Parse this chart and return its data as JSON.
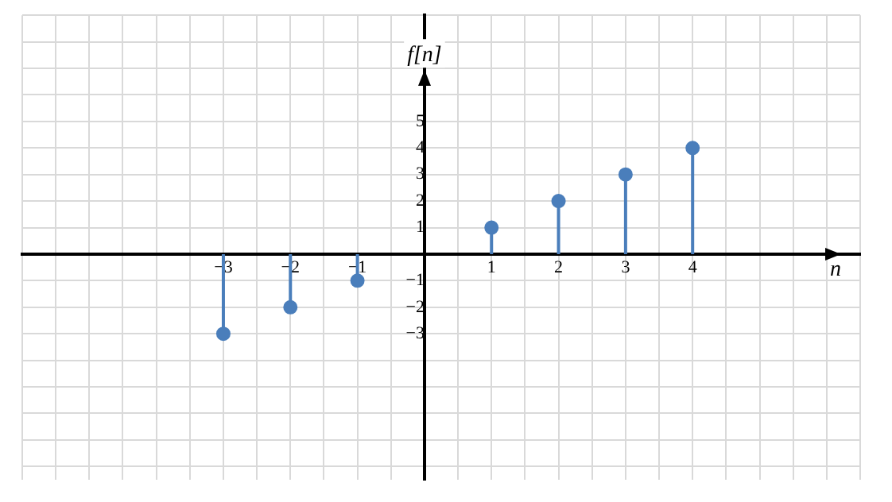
{
  "chart_data": {
    "type": "lollipop",
    "xlabel": "n",
    "ylabel": "f[n]",
    "x": [
      -3,
      -2,
      -1,
      1,
      2,
      3,
      4
    ],
    "values": [
      -3,
      -2,
      -1,
      1,
      2,
      3,
      4
    ],
    "color": "#4a7ebb",
    "marker": "circle",
    "grid": true,
    "xlim": [
      -6,
      6.5
    ],
    "ylim": [
      -8.5,
      9
    ],
    "xticks": [
      {
        "value": -6,
        "label": null
      },
      {
        "value": -5.5,
        "label": null
      },
      {
        "value": -5,
        "label": null
      },
      {
        "value": -4.5,
        "label": null
      },
      {
        "value": -4,
        "label": null
      },
      {
        "value": -3.5,
        "label": null
      },
      -3,
      {
        "value": -2.5,
        "label": null
      },
      -2,
      {
        "value": -1.5,
        "label": null
      },
      -1,
      {
        "value": -0.5,
        "label": null
      },
      {
        "value": 0,
        "label": null
      },
      {
        "value": 0.5,
        "label": null
      },
      1,
      {
        "value": 1.5,
        "label": null
      },
      2,
      {
        "value": 2.5,
        "label": null
      },
      3,
      {
        "value": 3.5,
        "label": null
      },
      4,
      {
        "value": 4.5,
        "label": null
      },
      {
        "value": 5,
        "label": null
      },
      {
        "value": 5.5,
        "label": null
      },
      {
        "value": 6,
        "label": null
      },
      {
        "value": 6.5,
        "label": null
      }
    ],
    "yticks": [
      {
        "value": -8,
        "label": null
      },
      {
        "value": -7,
        "label": null
      },
      {
        "value": -6,
        "label": null
      },
      {
        "value": -5,
        "label": null
      },
      {
        "value": -4,
        "label": null
      },
      -3,
      -2,
      -1,
      {
        "value": 0,
        "label": null
      },
      1,
      2,
      3,
      4,
      5,
      {
        "value": 6,
        "label": null
      },
      {
        "value": 7,
        "label": null
      },
      {
        "value": 8,
        "label": null
      },
      {
        "value": 9,
        "label": null
      }
    ]
  }
}
